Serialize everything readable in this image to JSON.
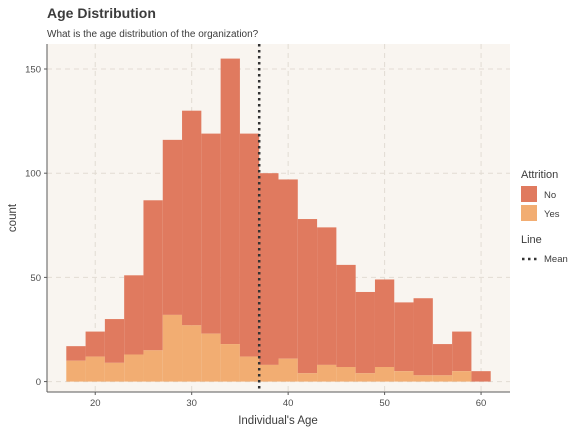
{
  "chart_data": {
    "type": "histogram",
    "title": "Age Distribution",
    "subtitle": "What is the age distribution of the organization?",
    "xlabel": "Individual's Age",
    "ylabel": "count",
    "xlim": [
      15,
      63
    ],
    "ylim": [
      -5,
      162
    ],
    "x_ticks": [
      20,
      30,
      40,
      50,
      60
    ],
    "y_ticks": [
      0,
      50,
      100,
      150
    ],
    "grid": true,
    "stacked": true,
    "bins": [
      {
        "x0": 17,
        "x1": 19,
        "total": 17,
        "yes": 10
      },
      {
        "x0": 19,
        "x1": 21,
        "total": 24,
        "yes": 12
      },
      {
        "x0": 21,
        "x1": 23,
        "total": 30,
        "yes": 9
      },
      {
        "x0": 23,
        "x1": 25,
        "total": 51,
        "yes": 13
      },
      {
        "x0": 25,
        "x1": 27,
        "total": 87,
        "yes": 15
      },
      {
        "x0": 27,
        "x1": 29,
        "total": 116,
        "yes": 32
      },
      {
        "x0": 29,
        "x1": 31,
        "total": 130,
        "yes": 27
      },
      {
        "x0": 31,
        "x1": 33,
        "total": 119,
        "yes": 23
      },
      {
        "x0": 33,
        "x1": 35,
        "total": 155,
        "yes": 18
      },
      {
        "x0": 35,
        "x1": 37,
        "total": 119,
        "yes": 12
      },
      {
        "x0": 37,
        "x1": 39,
        "total": 100,
        "yes": 8
      },
      {
        "x0": 39,
        "x1": 41,
        "total": 97,
        "yes": 11
      },
      {
        "x0": 41,
        "x1": 43,
        "total": 78,
        "yes": 4
      },
      {
        "x0": 43,
        "x1": 45,
        "total": 74,
        "yes": 8
      },
      {
        "x0": 45,
        "x1": 47,
        "total": 56,
        "yes": 7
      },
      {
        "x0": 47,
        "x1": 49,
        "total": 43,
        "yes": 4
      },
      {
        "x0": 49,
        "x1": 51,
        "total": 49,
        "yes": 7
      },
      {
        "x0": 51,
        "x1": 53,
        "total": 38,
        "yes": 5
      },
      {
        "x0": 53,
        "x1": 55,
        "total": 40,
        "yes": 3
      },
      {
        "x0": 55,
        "x1": 57,
        "total": 18,
        "yes": 3
      },
      {
        "x0": 57,
        "x1": 59,
        "total": 24,
        "yes": 5
      },
      {
        "x0": 59,
        "x1": 61,
        "total": 5,
        "yes": 0
      }
    ],
    "series": [
      {
        "name": "No",
        "color": "#e07a5f"
      },
      {
        "name": "Yes",
        "color": "#f2ad72"
      }
    ],
    "mean_line": {
      "label": "Mean",
      "x": 37,
      "color": "#333333",
      "style": "dotted"
    },
    "legend": {
      "placement": "right",
      "fill_title": "Attrition",
      "line_title": "Line"
    },
    "panel_background": "#f9f5f0",
    "grid_color": "#e2dcd3"
  }
}
